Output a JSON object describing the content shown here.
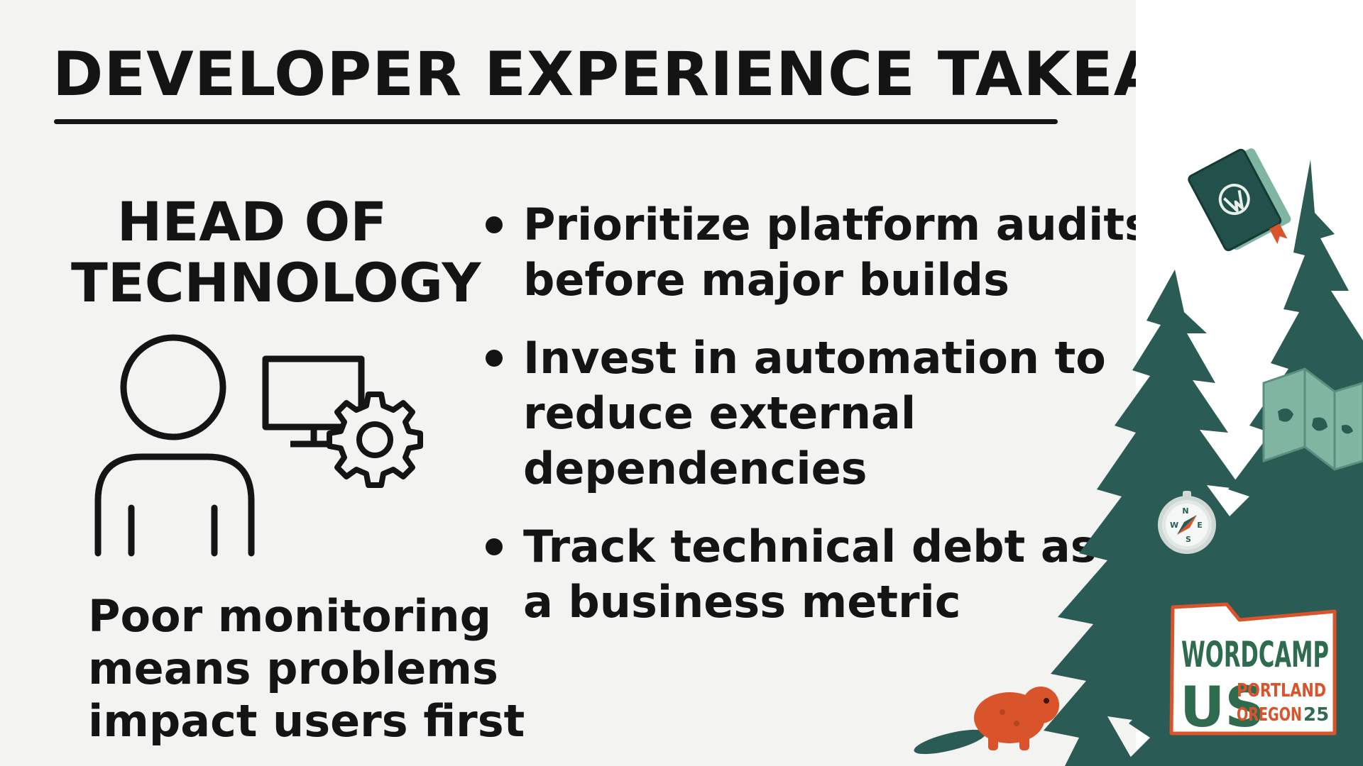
{
  "slide": {
    "title": "DEVELOPER EXPERIENCE TAKEAWAYS",
    "role": {
      "title_lines": [
        "HEAD OF",
        "TECHNOLOGY"
      ],
      "caption_lines": [
        "Poor monitoring",
        "means problems",
        "impact users first"
      ]
    },
    "bullets": [
      {
        "lines": [
          "Prioritize platform audits",
          "before major builds"
        ]
      },
      {
        "lines": [
          "Invest in automation to",
          "reduce external",
          "dependencies"
        ]
      },
      {
        "lines": [
          "Track technical debt as",
          "a business metric"
        ]
      }
    ]
  },
  "branding": {
    "event_name_line1": "WORDCAMP",
    "event_name_line2": "US",
    "city": "PORTLAND",
    "state": "OREGON",
    "year": "25",
    "compass_letters": [
      "N",
      "E",
      "S",
      "W"
    ]
  },
  "colors": {
    "background": "#f3f3f2",
    "ink": "#141414",
    "tree_green": "#2a5c55",
    "accent_orange": "#d9532b",
    "badge_green": "#2f6b4f",
    "map_green": "#7fb5a1"
  },
  "icons": [
    "person-icon",
    "monitor-icon",
    "gear-icon",
    "book-icon",
    "wordpress-logo-icon",
    "map-icon",
    "compass-icon",
    "beaver-icon",
    "tree-icon"
  ]
}
